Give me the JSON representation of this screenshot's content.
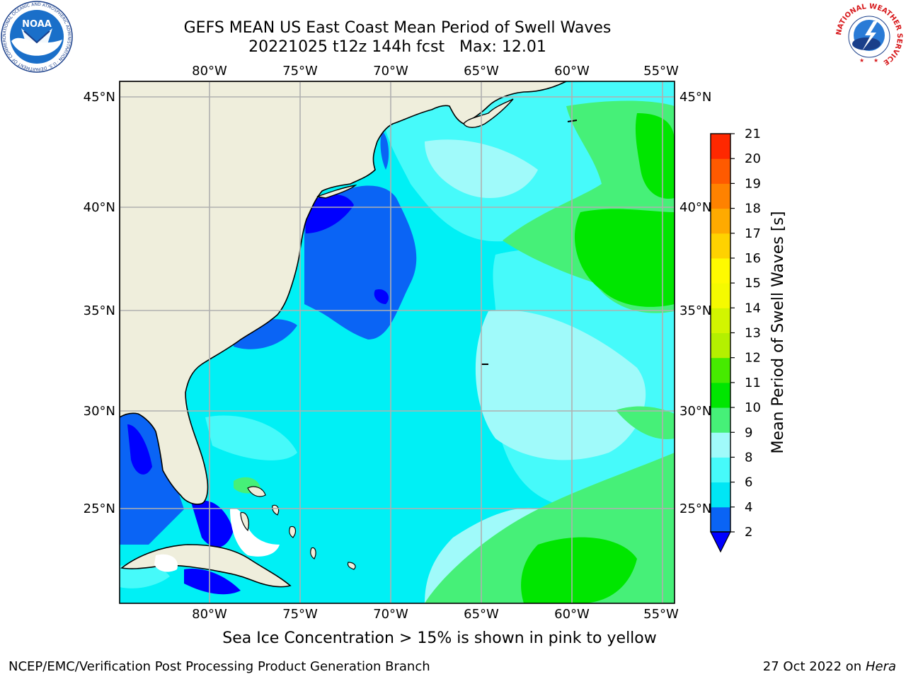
{
  "title": {
    "line1": "GEFS MEAN US East Coast Mean Period of Swell Waves",
    "line2": "20221025 t12z 144h fcst   Max: 12.01"
  },
  "map": {
    "lon_labels": [
      "80°W",
      "75°W",
      "70°W",
      "65°W",
      "60°W",
      "55°W"
    ],
    "lat_labels": [
      "45°N",
      "40°N",
      "35°N",
      "30°N",
      "25°N"
    ],
    "extent": {
      "lon": [
        -85,
        -54
      ],
      "lat": [
        20.5,
        46.3
      ]
    },
    "land_color": "#efeedc",
    "grid_color": "#b0b0b0"
  },
  "colorbar": {
    "label": "Mean Period of Swell Waves [s]",
    "ticks": [
      "2",
      "4",
      "6",
      "8",
      "9",
      "10",
      "11",
      "12",
      "13",
      "14",
      "15",
      "16",
      "17",
      "18",
      "19",
      "20",
      "21"
    ],
    "colors": [
      "#0a64f5",
      "#00e6f5",
      "#46fafa",
      "#a0fafa",
      "#46f078",
      "#00e600",
      "#46eb00",
      "#b4f000",
      "#d2f500",
      "#f5fa00",
      "#fffa00",
      "#ffd200",
      "#ffaa00",
      "#ff8200",
      "#ff5a00",
      "#ff2800",
      "#ff0000"
    ],
    "under_color": "#0000ff"
  },
  "ice_note": "Sea Ice Concentration > 15% is shown in pink to yellow",
  "footer": {
    "left": "NCEP/EMC/Verification Post Processing Product Generation Branch",
    "date": "27 Oct 2022 on ",
    "machine": "Hera"
  },
  "logos": {
    "noaa_text": "NOAA",
    "noaa_ring": "NATIONAL OCEANIC AND ATMOSPHERIC ADMINISTRATION · U.S. DEPARTMENT OF COMMERCE ·",
    "nws_ring": "NATIONAL WEATHER SERVICE"
  }
}
